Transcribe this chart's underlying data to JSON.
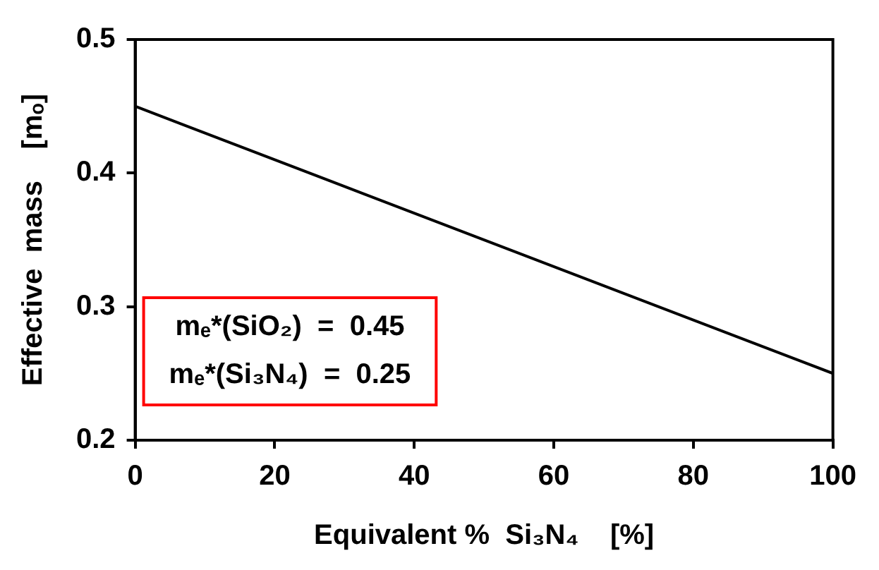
{
  "chart_data": {
    "type": "line",
    "xlabel": "Equivalent %  Si₃N₄    [%]",
    "ylabel": "Effective  mass    [mₒ]",
    "x": [
      0,
      100
    ],
    "series": [
      {
        "color": "#000000",
        "values": [
          0.45,
          0.25
        ]
      }
    ],
    "xlim": [
      0,
      100
    ],
    "xticks": [
      0,
      20,
      40,
      60,
      80,
      100
    ],
    "ylim": [
      0.2,
      0.5
    ],
    "yticks": [
      0.2,
      0.3,
      0.4,
      0.5
    ],
    "grid": false,
    "legend": false,
    "marker": "none",
    "line_style": "solid",
    "annotations": [
      "mₑ*(SiO₂)  =  0.45",
      "mₑ*(Si₃N₄)  =  0.25"
    ]
  }
}
